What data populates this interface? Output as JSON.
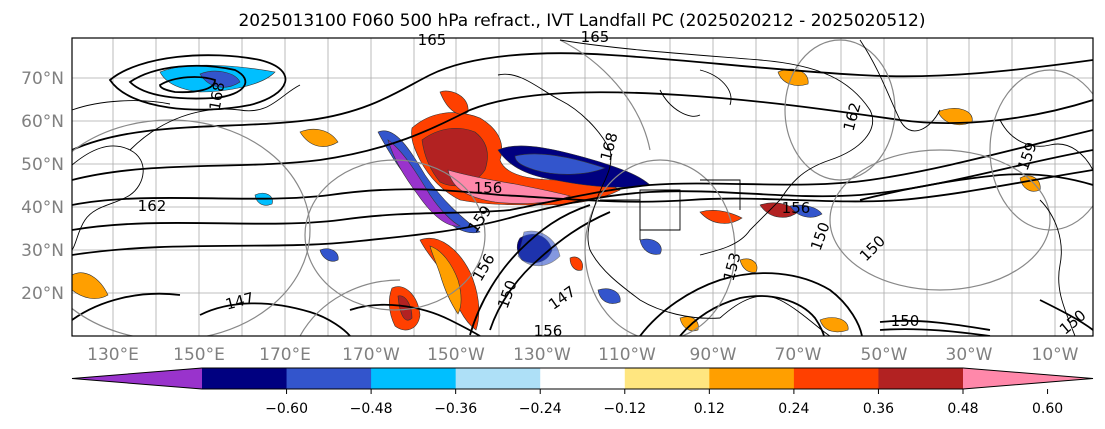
{
  "title": "2025013100 F060 500 hPa refract., IVT Landfall PC (2025020212 - 2025020512)",
  "map": {
    "lat_labels": [
      "70°N",
      "60°N",
      "50°N",
      "40°N",
      "30°N",
      "20°N"
    ],
    "lon_labels": [
      "130°E",
      "150°E",
      "170°E",
      "170°W",
      "150°W",
      "130°W",
      "110°W",
      "90°W",
      "70°W",
      "50°W",
      "30°W",
      "10°W"
    ],
    "contour_labels": [
      "165",
      "165",
      "162",
      "156",
      "159",
      "156",
      "150",
      "147",
      "147",
      "156",
      "153",
      "150",
      "150",
      "150",
      "156",
      "162",
      "168",
      "168",
      "159",
      "150"
    ]
  },
  "colorbar": {
    "tick_labels": [
      "−0.60",
      "−0.48",
      "−0.36",
      "−0.24",
      "−0.12",
      "0.12",
      "0.24",
      "0.36",
      "0.48",
      "0.60"
    ],
    "colors": [
      "#9933cc",
      "#000080",
      "#3355cc",
      "#00bfff",
      "#aee0f7",
      "#ffffff",
      "#ffe680",
      "#ff9f00",
      "#ff4000",
      "#b22222",
      "#ff88aa"
    ]
  }
}
